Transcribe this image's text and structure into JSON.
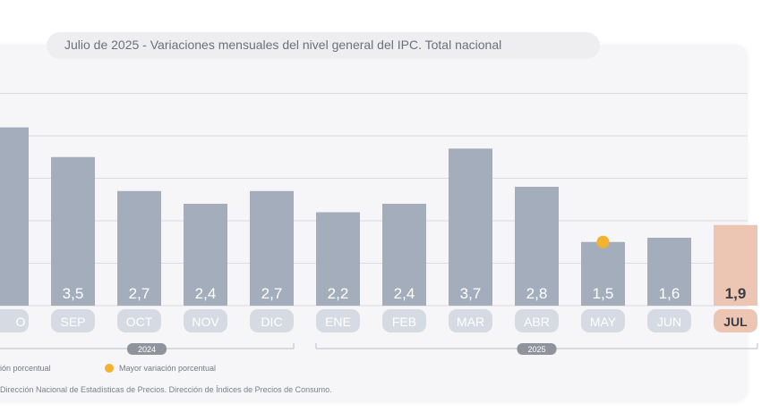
{
  "chart_data": {
    "type": "bar",
    "title": "Julio de 2025 - Variaciones mensuales del nivel general del IPC. Total nacional",
    "categories": [
      "AGO",
      "SEP",
      "OCT",
      "NOV",
      "DIC",
      "ENE",
      "FEB",
      "MAR",
      "ABR",
      "MAY",
      "JUN",
      "JUL"
    ],
    "values": [
      4.2,
      3.5,
      2.7,
      2.4,
      2.7,
      2.2,
      2.4,
      3.7,
      2.8,
      1.5,
      1.6,
      1.9
    ],
    "value_labels": [
      "",
      "3,5",
      "2,7",
      "2,4",
      "2,7",
      "2,2",
      "2,4",
      "3,7",
      "2,8",
      "1,5",
      "1,6",
      "1,9"
    ],
    "category_labels": [
      "O",
      "SEP",
      "OCT",
      "NOV",
      "DIC",
      "ENE",
      "FEB",
      "MAR",
      "ABR",
      "MAY",
      "JUN",
      "JUL"
    ],
    "highlight_index": 11,
    "marker_index": 9,
    "year_groups": [
      {
        "label": "2024",
        "from": 0,
        "to": 4
      },
      {
        "label": "2025",
        "from": 5,
        "to": 11
      }
    ],
    "ylim": [
      0,
      5
    ],
    "grid": true,
    "colors": {
      "bar": "#a3adbc",
      "highlight_bar": "#ecc6b2",
      "marker": "#f2b42f",
      "label_pill": "#d5dae3",
      "highlight_pill": "#ecc6b2"
    },
    "legend": [
      {
        "label": "ión porcentual"
      },
      {
        "label": "Mayor variación porcentual"
      }
    ],
    "source": "Dirección Nacional de Estadísticas de Precios. Dirección de Índices de Precios de Consumo."
  }
}
